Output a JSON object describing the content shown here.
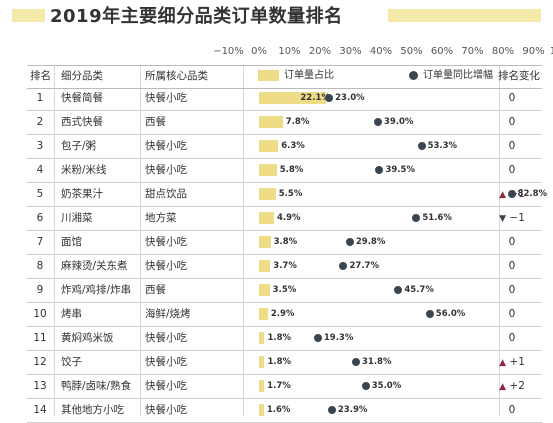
{
  "title": "2019年主要细分品类订单数量排名",
  "axis_ticks": [
    "−10%",
    "0%",
    "10%",
    "20%",
    "30%",
    "40%",
    "50%",
    "60%",
    "70%",
    "80%",
    "90%",
    "100%"
  ],
  "headers": {
    "rank": "排名",
    "category": "细分品类",
    "core": "所属核心品类",
    "share": "订单量占比",
    "growth": "订单量同比增幅",
    "change": "排名变化"
  },
  "colors": {
    "bar": "#eedd86",
    "dot": "#3a4552",
    "up": "#8a2a3f",
    "down": "#3a4552",
    "stripe": "#f3eaa9"
  },
  "chart_data": {
    "type": "bar",
    "title": "2019年主要细分品类订单数量排名",
    "xlim": [
      -10,
      100
    ],
    "series": [
      {
        "name": "订单量占比",
        "unit": "%",
        "values": [
          22.1,
          7.8,
          6.3,
          5.8,
          5.5,
          4.9,
          3.8,
          3.7,
          3.5,
          2.9,
          1.8,
          1.8,
          1.7,
          1.6
        ]
      },
      {
        "name": "订单量同比增幅",
        "unit": "%",
        "values": [
          23.0,
          39.0,
          53.3,
          39.5,
          82.8,
          51.6,
          29.8,
          27.7,
          45.7,
          56.0,
          19.3,
          31.8,
          35.0,
          23.9
        ]
      }
    ],
    "rows": [
      {
        "rank": "1",
        "category": "快餐简餐",
        "core": "快餐小吃",
        "share": 22.1,
        "share_label": "22.1%",
        "growth": 23.0,
        "growth_label": "23.0%",
        "change": "0",
        "dir": ""
      },
      {
        "rank": "2",
        "category": "西式快餐",
        "core": "西餐",
        "share": 7.8,
        "share_label": "7.8%",
        "growth": 39.0,
        "growth_label": "39.0%",
        "change": "0",
        "dir": ""
      },
      {
        "rank": "3",
        "category": "包子/粥",
        "core": "快餐小吃",
        "share": 6.3,
        "share_label": "6.3%",
        "growth": 53.3,
        "growth_label": "53.3%",
        "change": "0",
        "dir": ""
      },
      {
        "rank": "4",
        "category": "米粉/米线",
        "core": "快餐小吃",
        "share": 5.8,
        "share_label": "5.8%",
        "growth": 39.5,
        "growth_label": "39.5%",
        "change": "0",
        "dir": ""
      },
      {
        "rank": "5",
        "category": "奶茶果汁",
        "core": "甜点饮品",
        "share": 5.5,
        "share_label": "5.5%",
        "growth": 82.8,
        "growth_label": "82.8%",
        "change": "+1",
        "dir": "up"
      },
      {
        "rank": "6",
        "category": "川湘菜",
        "core": "地方菜",
        "share": 4.9,
        "share_label": "4.9%",
        "growth": 51.6,
        "growth_label": "51.6%",
        "change": "−1",
        "dir": "down"
      },
      {
        "rank": "7",
        "category": "面馆",
        "core": "快餐小吃",
        "share": 3.8,
        "share_label": "3.8%",
        "growth": 29.8,
        "growth_label": "29.8%",
        "change": "0",
        "dir": ""
      },
      {
        "rank": "8",
        "category": "麻辣烫/关东煮",
        "core": "快餐小吃",
        "share": 3.7,
        "share_label": "3.7%",
        "growth": 27.7,
        "growth_label": "27.7%",
        "change": "0",
        "dir": ""
      },
      {
        "rank": "9",
        "category": "炸鸡/鸡排/炸串",
        "core": "西餐",
        "share": 3.5,
        "share_label": "3.5%",
        "growth": 45.7,
        "growth_label": "45.7%",
        "change": "0",
        "dir": ""
      },
      {
        "rank": "10",
        "category": "烤串",
        "core": "海鲜/烧烤",
        "share": 2.9,
        "share_label": "2.9%",
        "growth": 56.0,
        "growth_label": "56.0%",
        "change": "0",
        "dir": ""
      },
      {
        "rank": "11",
        "category": "黄焖鸡米饭",
        "core": "快餐小吃",
        "share": 1.8,
        "share_label": "1.8%",
        "growth": 19.3,
        "growth_label": "19.3%",
        "change": "0",
        "dir": ""
      },
      {
        "rank": "12",
        "category": "饺子",
        "core": "快餐小吃",
        "share": 1.8,
        "share_label": "1.8%",
        "growth": 31.8,
        "growth_label": "31.8%",
        "change": "+1",
        "dir": "up"
      },
      {
        "rank": "13",
        "category": "鸭脖/卤味/熟食",
        "core": "快餐小吃",
        "share": 1.7,
        "share_label": "1.7%",
        "growth": 35.0,
        "growth_label": "35.0%",
        "change": "+2",
        "dir": "up"
      },
      {
        "rank": "14",
        "category": "其他地方小吃",
        "core": "快餐小吃",
        "share": 1.6,
        "share_label": "1.6%",
        "growth": 23.9,
        "growth_label": "23.9%",
        "change": "0",
        "dir": ""
      }
    ]
  }
}
